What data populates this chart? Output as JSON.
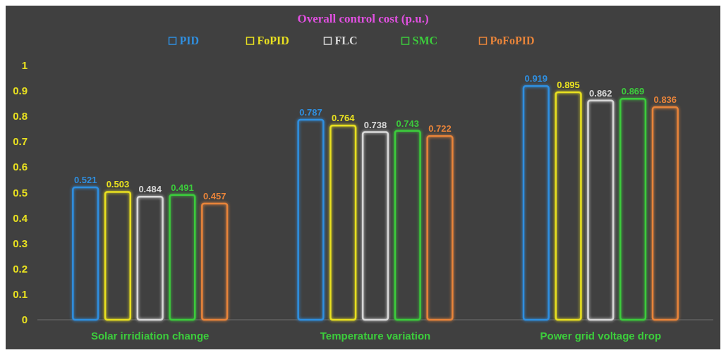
{
  "chart_data": {
    "type": "bar",
    "title": "Overall control cost (p.u.)",
    "categories": [
      "Solar irridiation change",
      "Temperature variation",
      "Power grid voltage drop"
    ],
    "series": [
      {
        "name": "PID",
        "color": "#2f8fe0",
        "values": [
          0.521,
          0.787,
          0.919
        ]
      },
      {
        "name": "FoPID",
        "color": "#e8e020",
        "values": [
          0.503,
          0.764,
          0.895
        ]
      },
      {
        "name": "FLC",
        "color": "#d8d8d8",
        "values": [
          0.484,
          0.738,
          0.862
        ]
      },
      {
        "name": "SMC",
        "color": "#3ccc3c",
        "values": [
          0.491,
          0.743,
          0.869
        ]
      },
      {
        "name": "PoFoPID",
        "color": "#e8843a",
        "values": [
          0.457,
          0.722,
          0.836
        ]
      }
    ],
    "ylim": [
      0,
      1
    ],
    "yticks": [
      0,
      0.1,
      0.2,
      0.3,
      0.4,
      0.5,
      0.6,
      0.7,
      0.8,
      0.9,
      1
    ],
    "data_labels": true,
    "legend": "top",
    "grid": false
  }
}
